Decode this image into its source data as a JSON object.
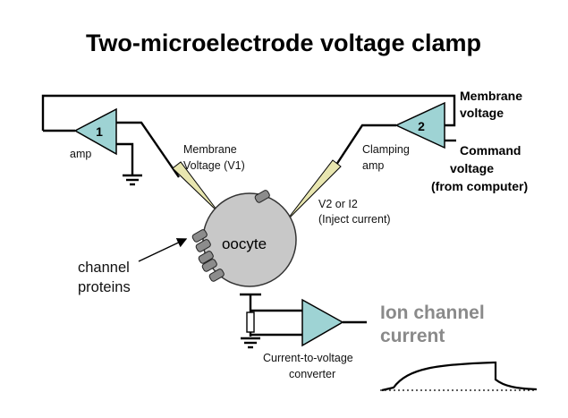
{
  "title": "Two-microelectrode voltage clamp",
  "amp1": {
    "number": "1",
    "label": "amp"
  },
  "amp2": {
    "number": "2",
    "label_line1": "Clamping",
    "label_line2": "amp"
  },
  "electrode1": {
    "label_line1": "Membrane",
    "label_line2": "Voltage (V1)"
  },
  "electrode2": {
    "label_line1": "V2 or I2",
    "label_line2": "(Inject current)"
  },
  "membrane_voltage": {
    "line1": "Membrane",
    "line2": "voltage"
  },
  "command_voltage": {
    "line1": "Command",
    "line2": "voltage",
    "line3": "(from computer)"
  },
  "cell": {
    "label": "oocyte"
  },
  "channel_proteins": {
    "line1": "channel",
    "line2": "proteins"
  },
  "converter": {
    "line1": "Current-to-voltage",
    "line2": "converter"
  },
  "ion_current": {
    "line1": "Ion channel",
    "line2": "current"
  },
  "colors": {
    "amp_fill": "#9ed3d4",
    "cell_fill": "#c8c8c8",
    "electrode_fill": "#e8e6b0",
    "channel_fill": "#8c8c8c",
    "label_grey": "#8a8a8a"
  }
}
